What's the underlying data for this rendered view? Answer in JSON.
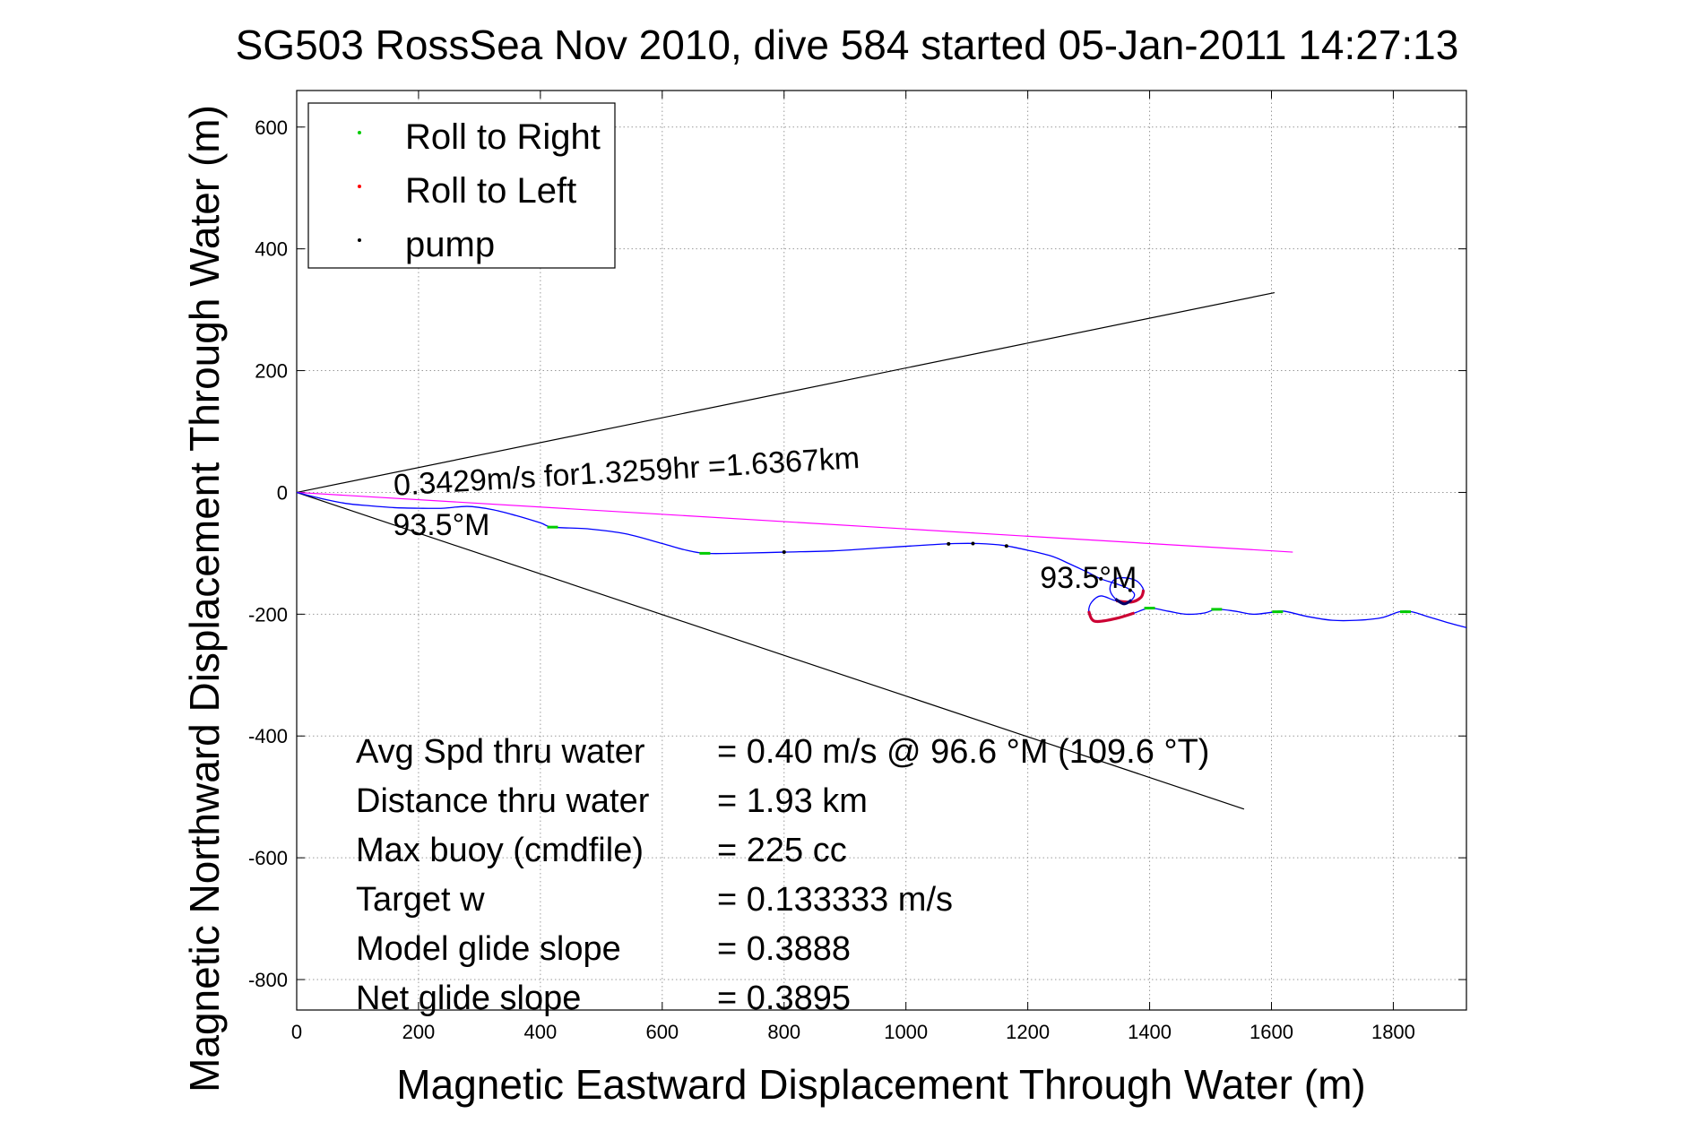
{
  "chart_data": {
    "type": "line",
    "title": "SG503 RossSea Nov 2010, dive 584 started 05-Jan-2011 14:27:13",
    "xlabel": "Magnetic Eastward Displacement Through Water (m)",
    "ylabel": "Magnetic Northward Displacement Through Water (m)",
    "xlim": [
      0,
      1920
    ],
    "ylim": [
      -850,
      660
    ],
    "xticks": [
      0,
      200,
      400,
      600,
      800,
      1000,
      1200,
      1400,
      1600,
      1800
    ],
    "yticks": [
      600,
      400,
      200,
      0,
      -200,
      -400,
      -600,
      -800
    ],
    "grid": true,
    "legend_position": "top-left",
    "legend": [
      {
        "label": "Roll to Right",
        "color": "#00cc00"
      },
      {
        "label": "Roll to Left",
        "color": "#ff0000"
      },
      {
        "label": "pump",
        "color": "#000000"
      }
    ],
    "track": {
      "color": "#0000ff",
      "points": [
        [
          0,
          0
        ],
        [
          40,
          -10
        ],
        [
          80,
          -18
        ],
        [
          120,
          -22
        ],
        [
          160,
          -25
        ],
        [
          200,
          -26
        ],
        [
          240,
          -26
        ],
        [
          280,
          -23
        ],
        [
          320,
          -28
        ],
        [
          360,
          -38
        ],
        [
          400,
          -50
        ],
        [
          420,
          -57
        ],
        [
          480,
          -60
        ],
        [
          540,
          -68
        ],
        [
          600,
          -84
        ],
        [
          640,
          -95
        ],
        [
          670,
          -100
        ],
        [
          720,
          -100
        ],
        [
          800,
          -98
        ],
        [
          880,
          -96
        ],
        [
          960,
          -91
        ],
        [
          1040,
          -86
        ],
        [
          1080,
          -84
        ],
        [
          1120,
          -84
        ],
        [
          1160,
          -87
        ],
        [
          1200,
          -95
        ],
        [
          1240,
          -105
        ],
        [
          1270,
          -118
        ],
        [
          1300,
          -132
        ],
        [
          1320,
          -142
        ],
        [
          1345,
          -150
        ],
        [
          1365,
          -158
        ],
        [
          1375,
          -167
        ],
        [
          1370,
          -177
        ],
        [
          1358,
          -183
        ],
        [
          1344,
          -175
        ],
        [
          1335,
          -160
        ],
        [
          1340,
          -145
        ],
        [
          1355,
          -140
        ],
        [
          1378,
          -145
        ],
        [
          1390,
          -160
        ],
        [
          1386,
          -172
        ],
        [
          1370,
          -180
        ],
        [
          1345,
          -178
        ],
        [
          1320,
          -170
        ],
        [
          1305,
          -180
        ],
        [
          1300,
          -195
        ],
        [
          1305,
          -208
        ],
        [
          1315,
          -212
        ],
        [
          1345,
          -207
        ],
        [
          1375,
          -198
        ],
        [
          1400,
          -190
        ],
        [
          1430,
          -195
        ],
        [
          1460,
          -200
        ],
        [
          1490,
          -198
        ],
        [
          1510,
          -192
        ],
        [
          1540,
          -195
        ],
        [
          1570,
          -200
        ],
        [
          1600,
          -197
        ],
        [
          1620,
          -195
        ],
        [
          1660,
          -204
        ],
        [
          1700,
          -210
        ],
        [
          1740,
          -210
        ],
        [
          1780,
          -206
        ],
        [
          1810,
          -196
        ],
        [
          1830,
          -196
        ],
        [
          1860,
          -205
        ],
        [
          1890,
          -214
        ],
        [
          1920,
          -222
        ]
      ]
    },
    "roll_right_x": [
      420,
      670,
      1400,
      1510,
      1610,
      1820
    ],
    "roll_left_arcs": [
      [
        1300,
        1312
      ],
      [
        1378,
        1392
      ]
    ],
    "pump_x": [
      800,
      1070,
      1110,
      1165,
      1320,
      1368
    ],
    "wedge_lines": {
      "color": "#000000",
      "lines": [
        [
          [
            0,
            0
          ],
          [
            1605,
            328
          ]
        ],
        [
          [
            0,
            0
          ],
          [
            1555,
            -520
          ]
        ]
      ]
    },
    "net_line": {
      "color": "#ff00ff",
      "points": [
        [
          0,
          0
        ],
        [
          1635,
          -98
        ]
      ]
    },
    "annotations": [
      {
        "text": "0.3429m/s for1.3259hr =1.6367km",
        "x": 160,
        "y": -5,
        "rotate": -3.4
      },
      {
        "text": "93.5°M",
        "x": 158,
        "y": -70,
        "rotate": 0
      },
      {
        "text": "93.5°M",
        "x": 1220,
        "y": -157,
        "rotate": 0
      }
    ],
    "stats": [
      {
        "label": "Avg Spd thru water",
        "value": "=  0.40 m/s @  96.6 °M (109.6 °T)"
      },
      {
        "label": "Distance thru water",
        "value": "=  1.93 km"
      },
      {
        "label": "Max buoy (cmdfile)",
        "value": "= 225 cc"
      },
      {
        "label": "Target w",
        "value": "= 0.133333 m/s"
      },
      {
        "label": "Model glide slope",
        "value": "= 0.3888"
      },
      {
        "label": "Net glide slope",
        "value": "= 0.3895"
      }
    ]
  }
}
